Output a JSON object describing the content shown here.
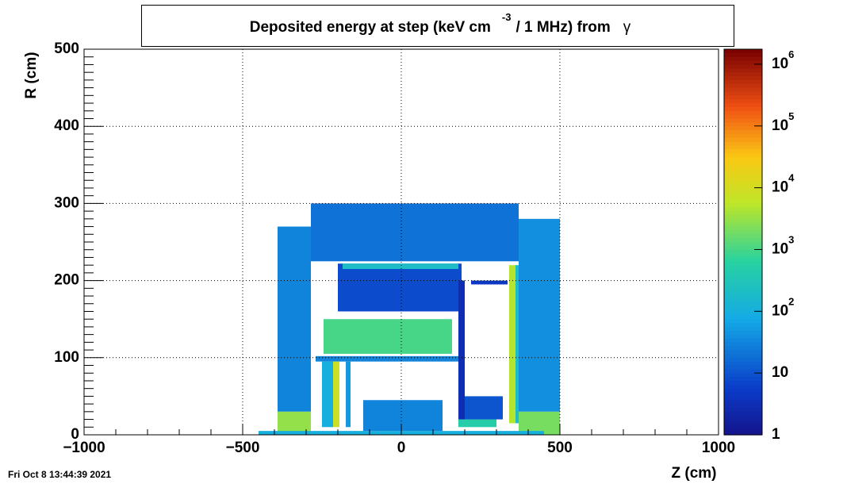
{
  "chart_data": {
    "type": "heatmap",
    "title": "Deposited energy at step (keV cm",
    "title_sup": "-3",
    "title_rest": "/ 1 MHz)  from",
    "title_particle": "γ",
    "xlabel": "Z (cm)",
    "ylabel": "R (cm)",
    "timestamp": "Fri Oct  8 13:44:39 2021",
    "xlim": [
      -1000,
      1000
    ],
    "xticks": [
      {
        "value": -1000,
        "label": "−1000"
      },
      {
        "value": -500,
        "label": "−500"
      },
      0,
      500,
      1000
    ],
    "ylim": [
      0,
      500
    ],
    "yticks": [
      0,
      100,
      200,
      300,
      400,
      500
    ],
    "grid": true,
    "zlog": true,
    "zlim": [
      1,
      1750000
    ],
    "zticks": [
      {
        "value": 1,
        "label": "1"
      },
      {
        "value": 10,
        "label": "10"
      },
      {
        "value": 100,
        "label": "10",
        "sup": "2"
      },
      {
        "value": 1000,
        "label": "10",
        "sup": "3"
      },
      {
        "value": 10000,
        "label": "10",
        "sup": "4"
      },
      {
        "value": 100000,
        "label": "10",
        "sup": "5"
      },
      {
        "value": 1000000,
        "label": "10",
        "sup": "6"
      }
    ],
    "regions": [
      {
        "z": [
          -390,
          -285
        ],
        "r": [
          30,
          270
        ],
        "value": 30
      },
      {
        "z": [
          -390,
          -285
        ],
        "r": [
          0,
          30
        ],
        "value": 3000
      },
      {
        "z": [
          -285,
          370
        ],
        "r": [
          225,
          300
        ],
        "value": 20
      },
      {
        "z": [
          370,
          500
        ],
        "r": [
          30,
          280
        ],
        "value": 40
      },
      {
        "z": [
          370,
          500
        ],
        "r": [
          0,
          30
        ],
        "value": 2000
      },
      {
        "z": [
          -200,
          190
        ],
        "r": [
          160,
          222
        ],
        "value": 8
      },
      {
        "z": [
          -245,
          160
        ],
        "r": [
          105,
          150
        ],
        "value": 1000
      },
      {
        "z": [
          -270,
          185
        ],
        "r": [
          95,
          102
        ],
        "value": 30
      },
      {
        "z": [
          -250,
          -215
        ],
        "r": [
          10,
          95
        ],
        "value": 100
      },
      {
        "z": [
          -215,
          -195
        ],
        "r": [
          10,
          95
        ],
        "value": 8000
      },
      {
        "z": [
          -175,
          -160
        ],
        "r": [
          10,
          95
        ],
        "value": 50
      },
      {
        "z": [
          340,
          360
        ],
        "r": [
          15,
          220
        ],
        "value": 5000
      },
      {
        "z": [
          360,
          370
        ],
        "r": [
          15,
          220
        ],
        "value": 200
      },
      {
        "z": [
          180,
          300
        ],
        "r": [
          10,
          20
        ],
        "value": 500
      },
      {
        "z": [
          190,
          320
        ],
        "r": [
          20,
          50
        ],
        "value": 10
      },
      {
        "z": [
          -450,
          450
        ],
        "r": [
          0,
          5
        ],
        "value": 100
      },
      {
        "z": [
          180,
          200
        ],
        "r": [
          20,
          200
        ],
        "value": 3
      },
      {
        "z": [
          -120,
          130
        ],
        "r": [
          5,
          45
        ],
        "value": 30
      },
      {
        "z": [
          -185,
          180
        ],
        "r": [
          215,
          222
        ],
        "value": 200
      },
      {
        "z": [
          220,
          335
        ],
        "r": [
          195,
          200
        ],
        "value": 5
      }
    ]
  }
}
